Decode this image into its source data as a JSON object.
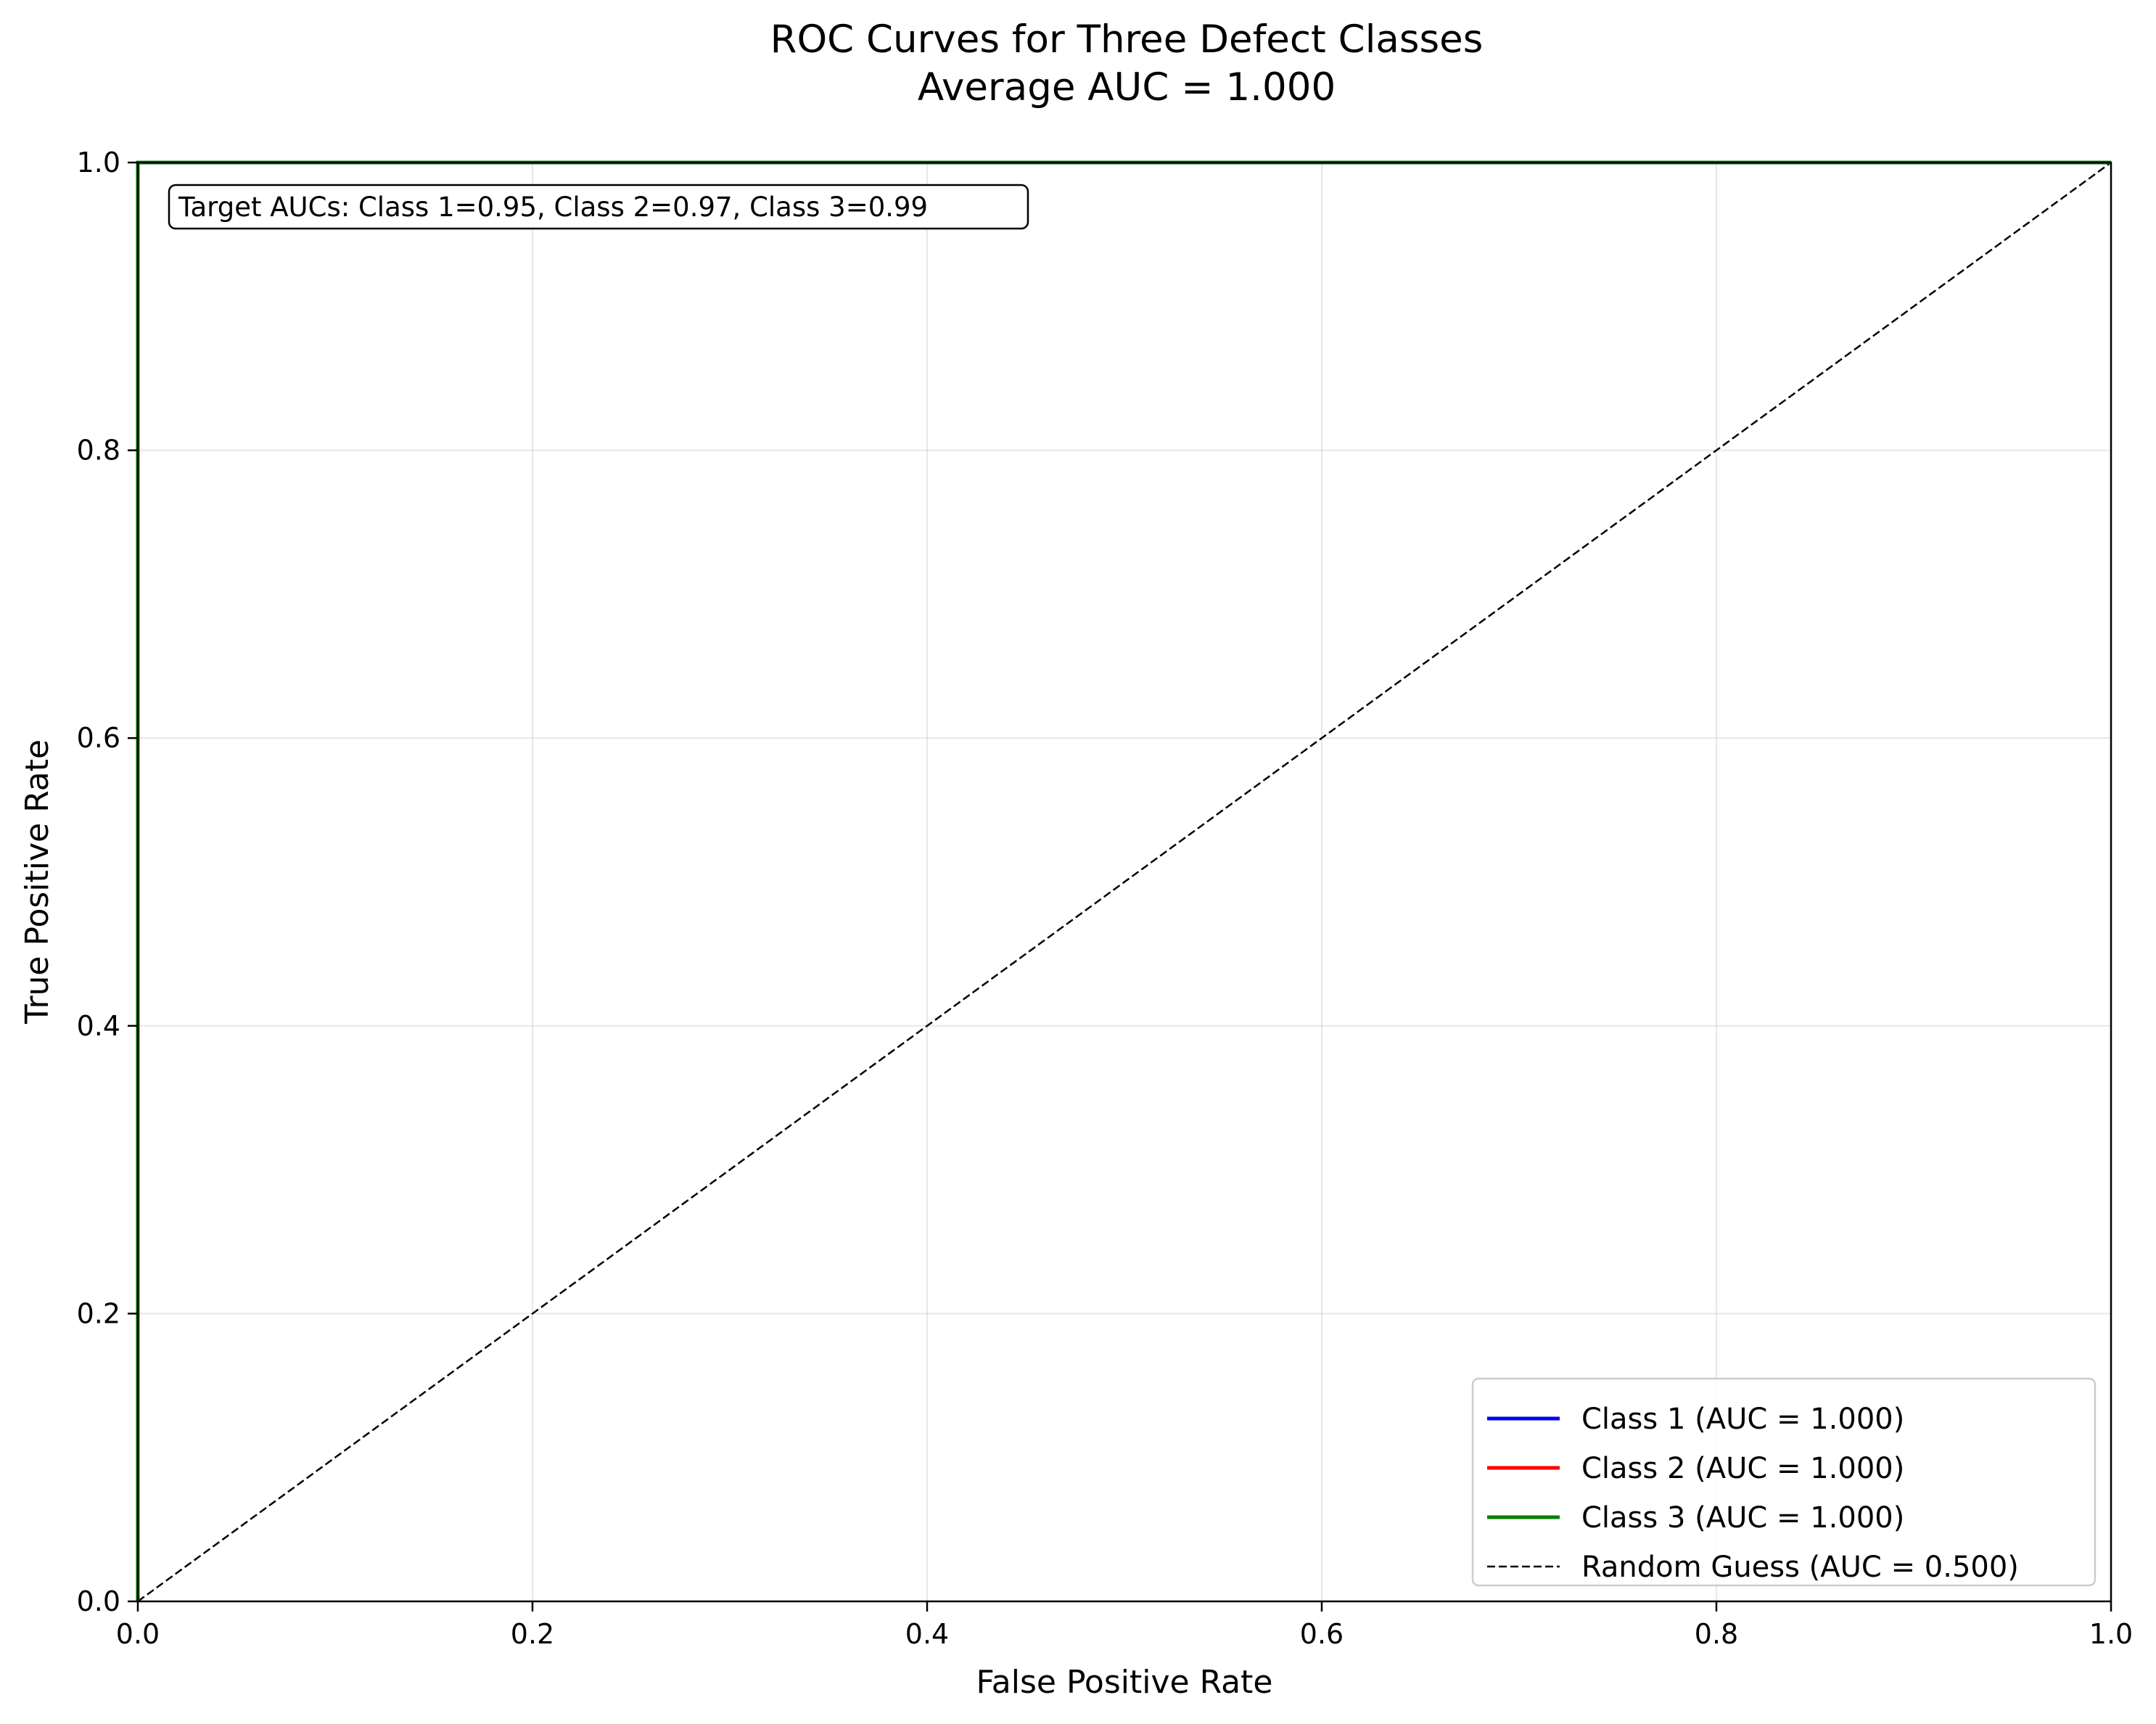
{
  "chart_data": {
    "type": "line",
    "title": "ROC Curves for Three Defect Classes",
    "subtitle": "Average AUC = 1.000",
    "xlabel": "False Positive Rate",
    "ylabel": "True Positive Rate",
    "xlim": [
      0.0,
      1.0
    ],
    "ylim": [
      0.0,
      1.0
    ],
    "x_ticks": [
      0.0,
      0.2,
      0.4,
      0.6,
      0.8,
      1.0
    ],
    "x_tick_labels": [
      "0.0",
      "0.2",
      "0.4",
      "0.6",
      "0.8",
      "1.0"
    ],
    "y_ticks": [
      0.0,
      0.2,
      0.4,
      0.6,
      0.8,
      1.0
    ],
    "y_tick_labels": [
      "0.0",
      "0.2",
      "0.4",
      "0.6",
      "0.8",
      "1.0"
    ],
    "grid": true,
    "legend_position": "lower-right",
    "annotation": "Target AUCs: Class 1=0.95, Class 2=0.97, Class 3=0.99",
    "annotation_position": "top-left",
    "series": [
      {
        "name": "Class 1 (AUC = 1.000)",
        "color": "#0000ff",
        "style": "solid",
        "x": [
          0.0,
          0.0,
          1.0
        ],
        "y": [
          0.0,
          1.0,
          1.0
        ]
      },
      {
        "name": "Class 2 (AUC = 1.000)",
        "color": "#ff0000",
        "style": "solid",
        "x": [
          0.0,
          0.0,
          1.0
        ],
        "y": [
          0.0,
          1.0,
          1.0
        ]
      },
      {
        "name": "Class 3 (AUC = 1.000)",
        "color": "#008000",
        "style": "solid",
        "x": [
          0.0,
          0.0,
          1.0
        ],
        "y": [
          0.0,
          1.0,
          1.0
        ]
      },
      {
        "name": "Random Guess (AUC = 0.500)",
        "color": "#000000",
        "style": "dashed",
        "x": [
          0.0,
          1.0
        ],
        "y": [
          0.0,
          1.0
        ]
      }
    ]
  }
}
